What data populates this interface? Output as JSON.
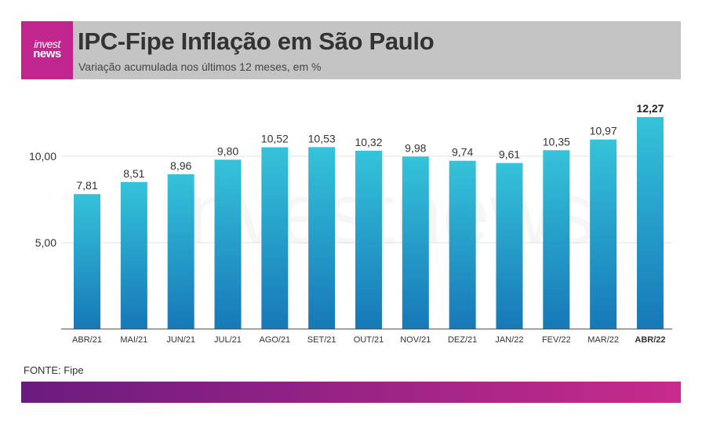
{
  "header": {
    "logo_line1": "invest",
    "logo_line2": "news",
    "title": "IPC-Fipe Inflação em São Paulo",
    "subtitle": "Variação acumulada nos últimos 12 meses, em %"
  },
  "source": "FONTE: Fipe",
  "watermark": "investnews",
  "colors": {
    "brand_magenta": "#c0268d",
    "header_bg": "#c4c4c4",
    "bar_top": "#35c3da",
    "bar_bottom": "#1678b8",
    "footer_left": "#6a1b7f",
    "footer_right": "#c72a8c"
  },
  "chart_data": {
    "type": "bar",
    "title": "IPC-Fipe Inflação em São Paulo",
    "subtitle": "Variação acumulada nos últimos 12 meses, em %",
    "categories": [
      "ABR/21",
      "MAI/21",
      "JUN/21",
      "JUL/21",
      "AGO/21",
      "SET/21",
      "OUT/21",
      "NOV/21",
      "DEZ/21",
      "JAN/22",
      "FEV/22",
      "MAR/22",
      "ABR/22"
    ],
    "values": [
      7.81,
      8.51,
      8.96,
      9.8,
      10.52,
      10.53,
      10.32,
      9.98,
      9.74,
      9.61,
      10.35,
      10.97,
      12.27
    ],
    "value_labels": [
      "7,81",
      "8,51",
      "8,96",
      "9,80",
      "10,52",
      "10,53",
      "10,32",
      "9,98",
      "9,74",
      "9,61",
      "10,35",
      "10,97",
      "12,27"
    ],
    "highlight_index": 12,
    "yticks": [
      5,
      10
    ],
    "ytick_labels": [
      "5,00",
      "10,00"
    ],
    "ylim": [
      0,
      13
    ],
    "grid": true,
    "legend": false
  }
}
